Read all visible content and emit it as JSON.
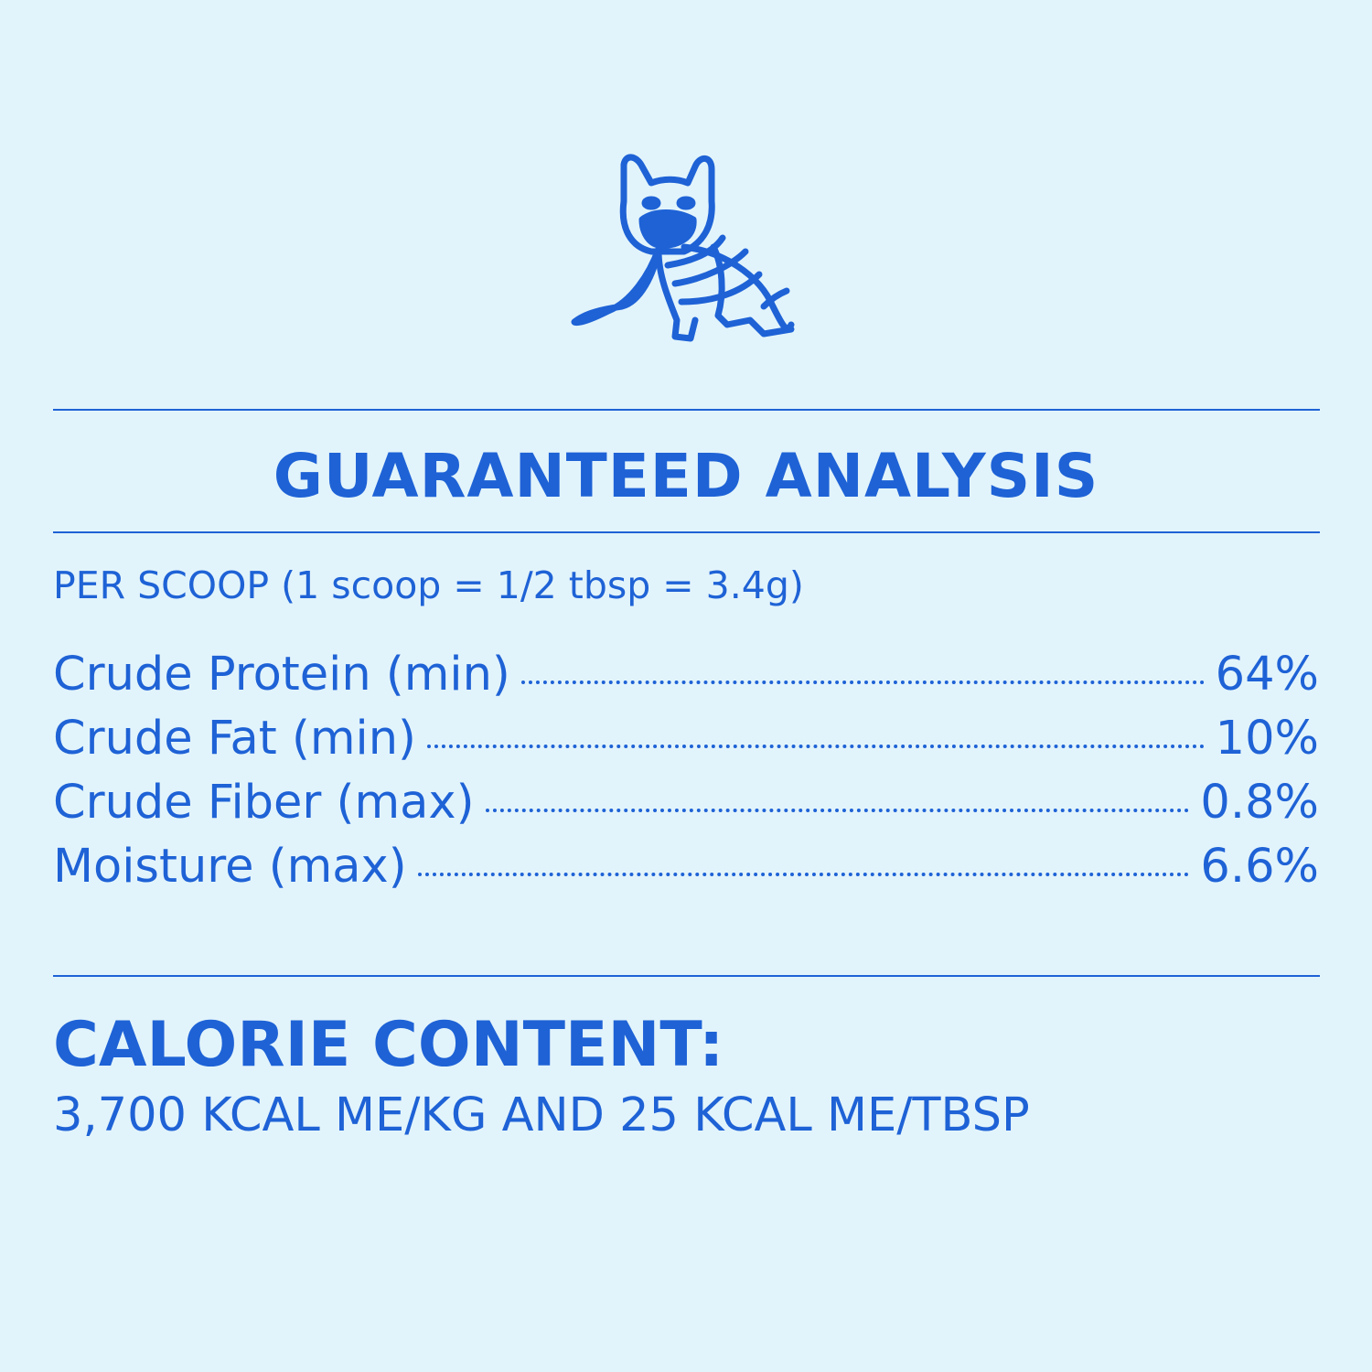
{
  "brand_color": "#1e62d6",
  "background_color": "#e2f4fb",
  "illustration": "french-bulldog-in-sweater",
  "title": "GUARANTEED ANALYSIS",
  "serving": "PER SCOOP (1 scoop = 1/2 tbsp = 3.4g)",
  "analysis": [
    {
      "label": "Crude Protein (min)",
      "value": "64%"
    },
    {
      "label": "Crude Fat (min)",
      "value": "10%"
    },
    {
      "label": "Crude Fiber (max)",
      "value": "0.8%"
    },
    {
      "label": "Moisture (max)",
      "value": "6.6%"
    }
  ],
  "calorie": {
    "title": "CALORIE CONTENT:",
    "text": "3,700 KCAL ME/KG AND 25 KCAL ME/TBSP"
  }
}
